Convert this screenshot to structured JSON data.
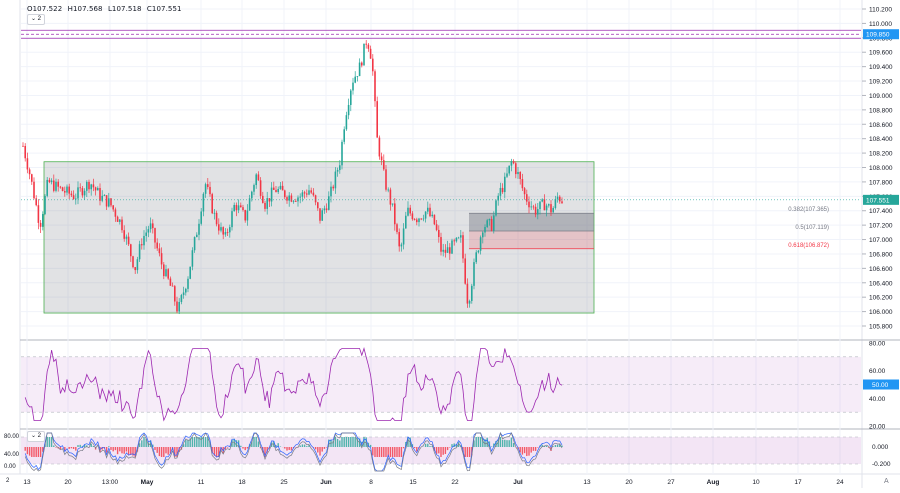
{
  "ohlc": {
    "open": "O107.522",
    "high": "H107.568",
    "low": "L107.518",
    "close": "C107.551"
  },
  "indicator_collapse_label": "2",
  "bottom_left_badge": "2",
  "price_axis": {
    "ticks": [
      "110.200",
      "110.000",
      "109.800",
      "109.600",
      "109.400",
      "109.200",
      "109.000",
      "108.800",
      "108.600",
      "108.400",
      "108.200",
      "108.000",
      "107.800",
      "107.600",
      "107.400",
      "107.200",
      "107.000",
      "106.800",
      "106.600",
      "106.400",
      "106.200",
      "106.000",
      "105.800"
    ],
    "tick_values": [
      110.2,
      110.0,
      109.8,
      109.6,
      109.4,
      109.2,
      109.0,
      108.8,
      108.6,
      108.4,
      108.2,
      108.0,
      107.8,
      107.6,
      107.4,
      107.2,
      107.0,
      106.8,
      106.6,
      106.4,
      106.2,
      106.0,
      105.8
    ],
    "marked_level": "109.850",
    "marked_level_value": 109.85,
    "last_price": "107.551",
    "last_price_value": 107.551
  },
  "fib_levels": [
    {
      "label": "0.382(107.365)",
      "value": 107.365,
      "color": "#787b86"
    },
    {
      "label": "0.5(107.119)",
      "value": 107.119,
      "color": "#787b86"
    },
    {
      "label": "0.618(106.872)",
      "value": 106.872,
      "color": "#f23645"
    }
  ],
  "range_box": {
    "top": 108.08,
    "bottom": 105.98
  },
  "rsi": {
    "ticks": [
      "80.00",
      "60.00",
      "40.00",
      "20.00"
    ],
    "tick_values": [
      80,
      60,
      40,
      20
    ],
    "current": "50.00",
    "current_value": 50,
    "upper": 70,
    "lower": 30,
    "mid": 50
  },
  "osc": {
    "left_ticks": [
      "80.00",
      "40.00",
      "0.00"
    ],
    "right_ticks": [
      "0.000",
      "-0.200"
    ],
    "right_tick_values": [
      0.0,
      -0.2
    ]
  },
  "time_axis": {
    "labels": [
      "13",
      "20",
      "13:00",
      "May",
      "11",
      "18",
      "25",
      "Jun",
      "8",
      "15",
      "22",
      "Jul",
      "13",
      "20",
      "27",
      "Aug",
      "10",
      "17",
      "24"
    ],
    "bold": [
      "May",
      "Jun",
      "Jul",
      "Aug"
    ]
  },
  "colors": {
    "up": "#26a69a",
    "down": "#f23645",
    "rsi": "#9c27b0",
    "marked_level": "#9c27b0",
    "last_price": "#2196f3",
    "fib_warn": "#f23645",
    "box": "#d1d4dc"
  }
}
